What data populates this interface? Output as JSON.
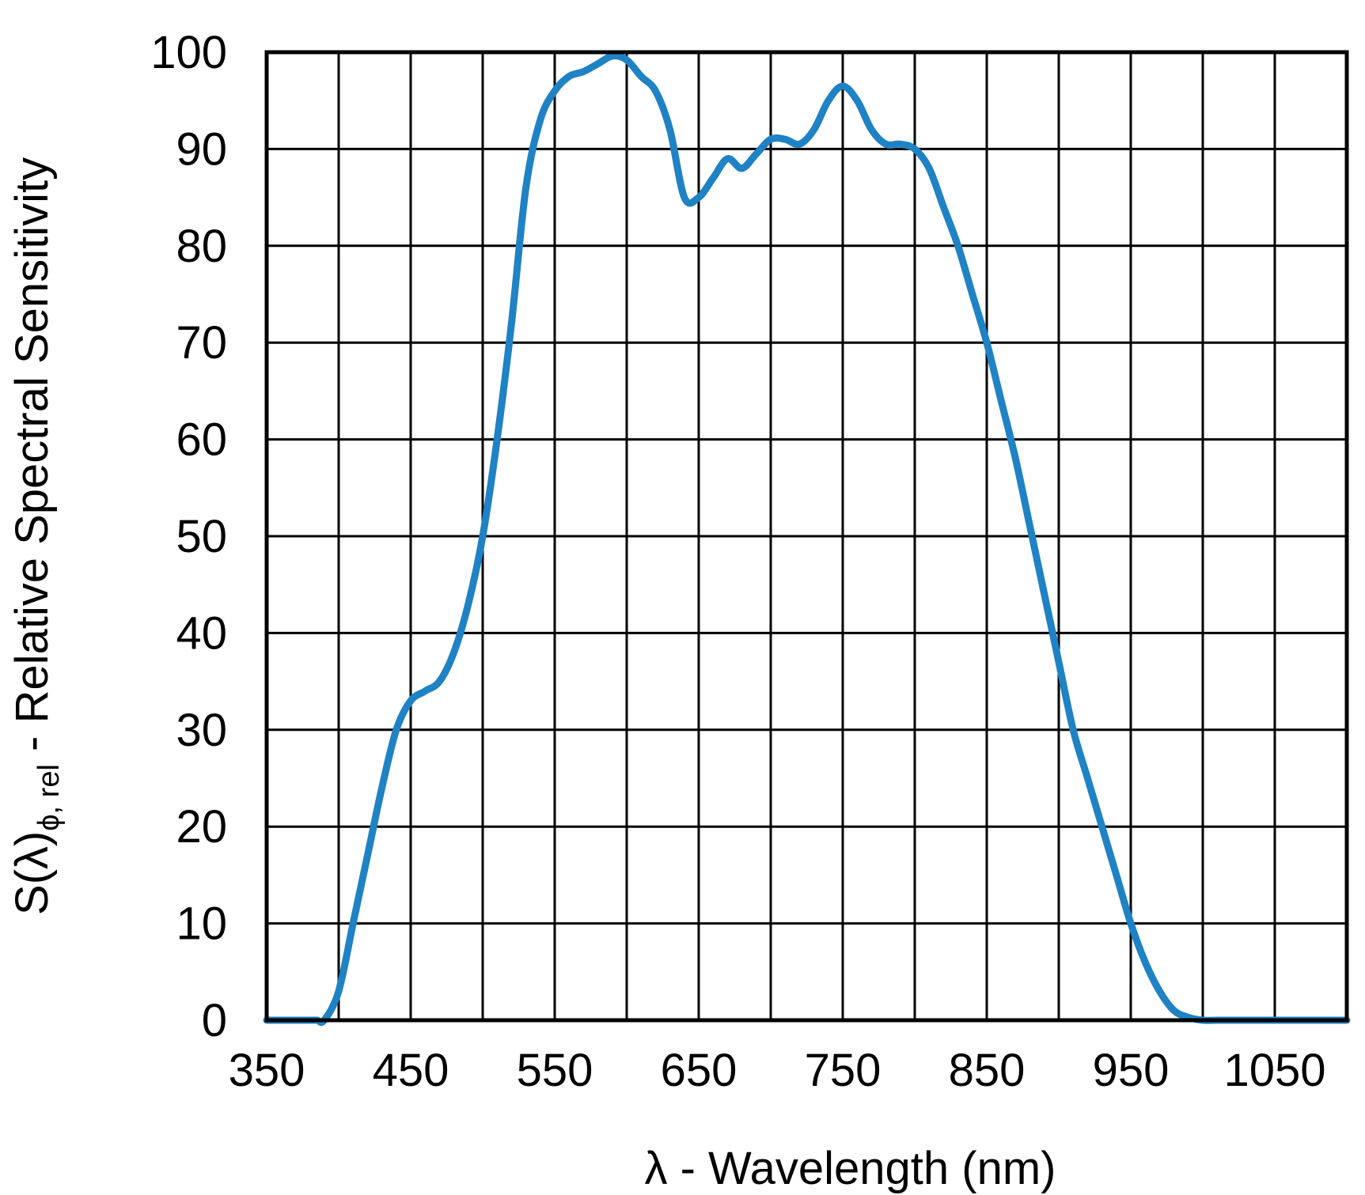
{
  "chart_data": {
    "type": "line",
    "xlabel": "λ - Wavelength (nm)",
    "ylabel": {
      "main": "S(λ)",
      "subscript": "ϕ, rel",
      "suffix": " - Relative Spectral Sensitivity"
    },
    "xlim": [
      350,
      1100
    ],
    "ylim": [
      0,
      100
    ],
    "x_ticks": [
      350,
      450,
      550,
      650,
      750,
      850,
      950,
      1050
    ],
    "x_tick_labels": [
      "350",
      "450",
      "550",
      "650",
      "750",
      "850",
      "950",
      "1050"
    ],
    "x_grid_step": 50,
    "y_ticks": [
      0,
      10,
      20,
      30,
      40,
      50,
      60,
      70,
      80,
      90,
      100
    ],
    "y_tick_labels": [
      "0",
      "10",
      "20",
      "30",
      "40",
      "50",
      "60",
      "70",
      "80",
      "90",
      "100"
    ],
    "grid": true,
    "line_color": "#1f82c4",
    "series": [
      {
        "x": [
          350,
          380,
          385,
          390,
          400,
          410,
          420,
          430,
          440,
          450,
          460,
          470,
          480,
          490,
          500,
          510,
          520,
          530,
          540,
          550,
          560,
          570,
          580,
          590,
          600,
          610,
          620,
          630,
          640,
          650,
          660,
          670,
          680,
          690,
          700,
          710,
          720,
          730,
          740,
          750,
          760,
          770,
          780,
          790,
          800,
          810,
          820,
          830,
          840,
          850,
          860,
          870,
          880,
          890,
          900,
          910,
          920,
          930,
          940,
          950,
          960,
          970,
          980,
          990,
          1000,
          1010,
          1020,
          1030,
          1040,
          1050,
          1060,
          1070,
          1080,
          1090,
          1100
        ],
        "y": [
          0,
          0,
          0,
          0,
          3,
          10,
          17,
          24,
          30,
          33,
          34,
          35,
          38,
          43,
          50,
          60,
          72,
          86,
          93,
          96,
          97.5,
          98,
          98.8,
          99.6,
          99.2,
          97.5,
          96,
          92,
          85,
          85,
          87,
          89,
          88,
          89.5,
          91,
          91,
          90.5,
          92,
          95,
          96.5,
          95,
          92,
          90.5,
          90.5,
          90,
          88,
          84,
          80,
          75,
          70,
          64,
          58,
          51,
          44,
          37,
          30,
          25,
          20,
          15,
          10,
          6,
          3,
          1,
          0.3,
          0,
          0,
          0,
          0,
          0,
          0,
          0,
          0,
          0,
          0,
          0
        ]
      }
    ]
  }
}
